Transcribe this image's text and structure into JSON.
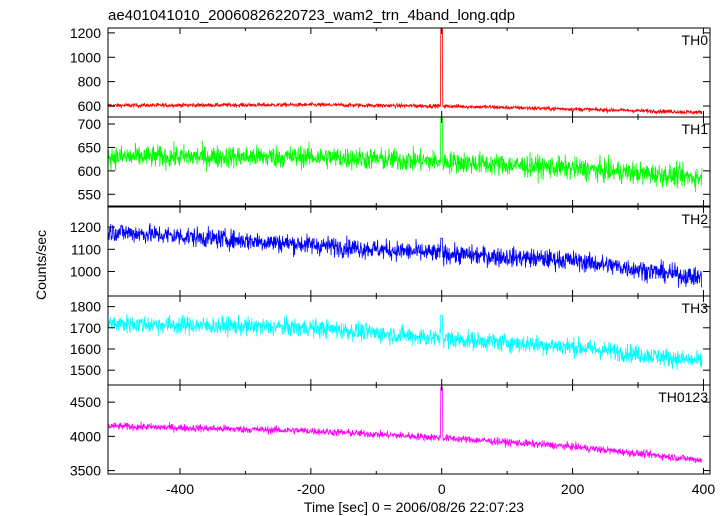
{
  "title": "ae401041010_20060826220723_wam2_trn_4band_long.qdp",
  "ylabel": "Counts/sec",
  "xlabel": "Time [sec] 0 = 2006/08/26 22:07:23",
  "x_ticks": [
    "-400",
    "-200",
    "0",
    "200",
    "400"
  ],
  "chart_data": [
    {
      "type": "line",
      "name": "TH0",
      "color": "#ff0000",
      "xlim": [
        -510,
        410
      ],
      "ylim": [
        510,
        1240
      ],
      "y_ticks": [
        600,
        800,
        1000,
        1200
      ],
      "trend": [
        [
          -510,
          605
        ],
        [
          -200,
          610
        ],
        [
          0,
          600
        ],
        [
          200,
          575
        ],
        [
          400,
          548
        ]
      ],
      "noise": 15,
      "spike": {
        "x": 0,
        "peak": 1230
      }
    },
    {
      "type": "line",
      "name": "TH1",
      "color": "#00ff00",
      "xlim": [
        -510,
        410
      ],
      "ylim": [
        525,
        715
      ],
      "y_ticks": [
        550,
        600,
        650,
        700
      ],
      "trend": [
        [
          -510,
          630
        ],
        [
          -200,
          630
        ],
        [
          0,
          620
        ],
        [
          200,
          605
        ],
        [
          400,
          585
        ]
      ],
      "noise": 22,
      "spike": {
        "x": 0,
        "peak": 720
      }
    },
    {
      "type": "line",
      "name": "TH2",
      "color": "#0000ff",
      "xlim": [
        -510,
        410
      ],
      "ylim": [
        890,
        1290
      ],
      "y_ticks": [
        1000,
        1100,
        1200
      ],
      "trend": [
        [
          -510,
          1180
        ],
        [
          -200,
          1120
        ],
        [
          0,
          1080
        ],
        [
          200,
          1050
        ],
        [
          400,
          970
        ]
      ],
      "noise": 40,
      "spike": {
        "x": 0,
        "peak": 1150
      }
    },
    {
      "type": "line",
      "name": "TH3",
      "color": "#00ffff",
      "xlim": [
        -510,
        410
      ],
      "ylim": [
        1430,
        1850
      ],
      "y_ticks": [
        1500,
        1600,
        1700,
        1800
      ],
      "trend": [
        [
          -510,
          1720
        ],
        [
          -200,
          1700
        ],
        [
          0,
          1650
        ],
        [
          200,
          1610
        ],
        [
          400,
          1540
        ]
      ],
      "noise": 40,
      "spike": {
        "x": 0,
        "peak": 1760
      }
    },
    {
      "type": "line",
      "name": "TH0123",
      "color": "#ff00ff",
      "xlim": [
        -510,
        410
      ],
      "ylim": [
        3450,
        4750
      ],
      "y_ticks": [
        3500,
        4000,
        4500
      ],
      "trend": [
        [
          -510,
          4150
        ],
        [
          -200,
          4080
        ],
        [
          0,
          3980
        ],
        [
          200,
          3850
        ],
        [
          400,
          3650
        ]
      ],
      "noise": 50,
      "spike": {
        "x": 0,
        "peak": 4720
      }
    }
  ]
}
